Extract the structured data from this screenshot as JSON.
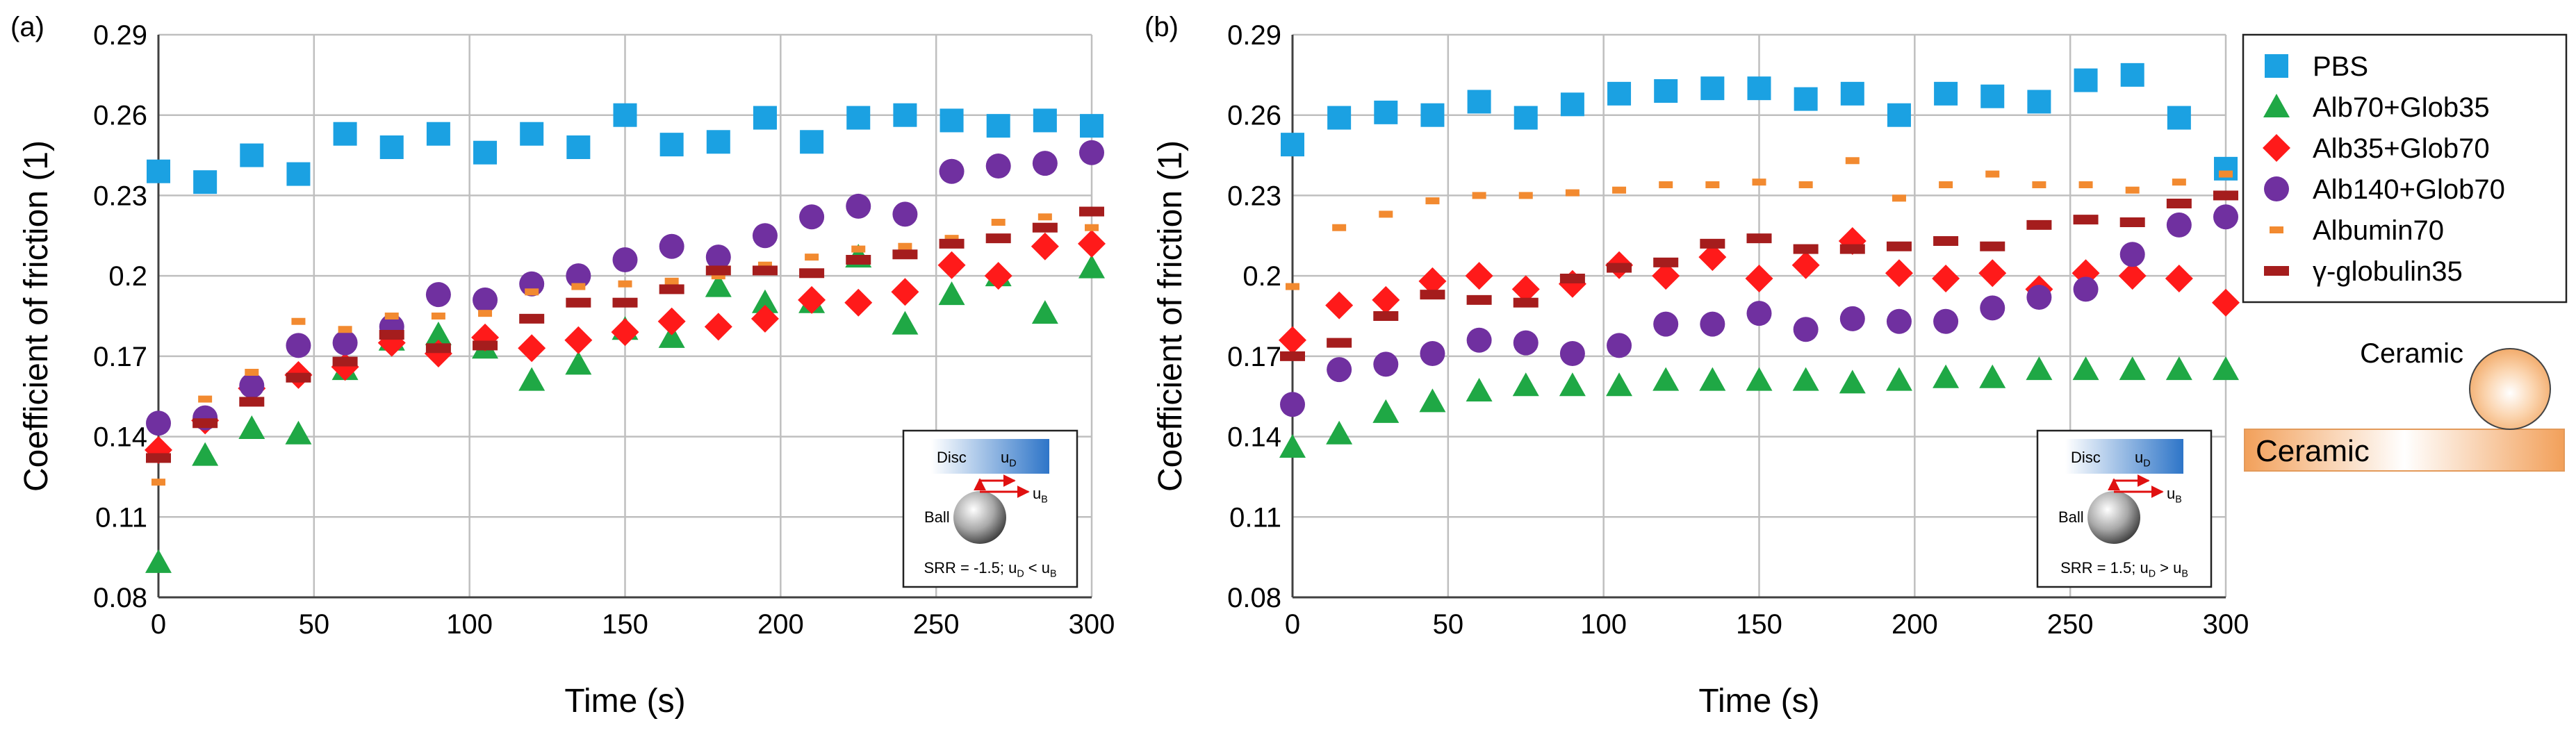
{
  "colors": {
    "PBS": "#1BA1E2",
    "Alb70+Glob35": "#1FA845",
    "Alb35+Glob70": "#FF1A1A",
    "Alb140+Glob70": "#7030A0",
    "Albumin70": "#F28A30",
    "globulin35": "#A51D1D",
    "grid": "#BFBFBF",
    "axis": "#404040"
  },
  "legend": {
    "placement": "right",
    "entries": [
      {
        "name": "PBS",
        "marker": "square"
      },
      {
        "name": "Alb70+Glob35",
        "marker": "triangle"
      },
      {
        "name": "Alb35+Glob70",
        "marker": "diamond"
      },
      {
        "name": "Alb140+Glob70",
        "marker": "circle"
      },
      {
        "name": "Albumin70",
        "marker": "short-dash"
      },
      {
        "name": "γ-globulin35",
        "marker": "long-dash"
      }
    ]
  },
  "contact_diagram": {
    "ball_label": "Ceramic",
    "disc_label": "Ceramic"
  },
  "chart_data": [
    {
      "type": "scatter",
      "panel_label": "(a)",
      "xlabel": "Time (s)",
      "ylabel": "Coefficient of friction (1)",
      "xlim": [
        0,
        300
      ],
      "ylim": [
        0.08,
        0.29
      ],
      "xticks": [
        0,
        50,
        100,
        150,
        200,
        250,
        300
      ],
      "yticks": [
        0.08,
        0.11,
        0.14,
        0.17,
        0.2,
        0.23,
        0.26,
        0.29
      ],
      "ytick_labels": [
        "0.08",
        "0.11",
        "0.14",
        "0.17",
        "0.2",
        "0.23",
        "0.26",
        "0.29"
      ],
      "grid": true,
      "inset": {
        "disc_label": "Disc",
        "ud": "u",
        "ud_sub": "D",
        "ub": "u",
        "ub_sub": "B",
        "ball_label": "Ball",
        "srr_text": "SRR = -1.5; u",
        "srr_sub1": "D",
        "srr_mid": " < u",
        "srr_sub2": "B"
      },
      "x": [
        0,
        15,
        30,
        45,
        60,
        75,
        90,
        105,
        120,
        135,
        150,
        165,
        180,
        195,
        210,
        225,
        240,
        255,
        270,
        285,
        300
      ],
      "series": [
        {
          "name": "PBS",
          "values": [
            0.239,
            0.235,
            0.245,
            0.238,
            0.253,
            0.248,
            0.253,
            0.246,
            0.253,
            0.248,
            0.26,
            0.249,
            0.25,
            0.259,
            0.25,
            0.259,
            0.26,
            0.258,
            0.256,
            0.258,
            0.256
          ]
        },
        {
          "name": "Alb70+Glob35",
          "values": [
            0.093,
            0.133,
            0.143,
            0.141,
            0.165,
            0.176,
            0.178,
            0.173,
            0.161,
            0.167,
            0.18,
            0.177,
            0.196,
            0.19,
            0.19,
            0.207,
            0.182,
            0.193,
            0.2,
            0.186,
            0.203
          ]
        },
        {
          "name": "Alb35+Glob70",
          "values": [
            0.135,
            0.146,
            0.158,
            0.163,
            0.166,
            0.175,
            0.171,
            0.177,
            0.173,
            0.176,
            0.179,
            0.183,
            0.181,
            0.184,
            0.191,
            0.19,
            0.194,
            0.204,
            0.2,
            0.211,
            0.212
          ]
        },
        {
          "name": "Alb140+Glob70",
          "values": [
            0.145,
            0.147,
            0.159,
            0.174,
            0.175,
            0.181,
            0.193,
            0.191,
            0.197,
            0.2,
            0.206,
            0.211,
            0.207,
            0.215,
            0.222,
            0.226,
            0.223,
            0.239,
            0.241,
            0.242,
            0.246
          ]
        },
        {
          "name": "Albumin70",
          "values": [
            0.123,
            0.154,
            0.164,
            0.183,
            0.18,
            0.185,
            0.185,
            0.186,
            0.194,
            0.196,
            0.197,
            0.198,
            0.2,
            0.204,
            0.207,
            0.21,
            0.211,
            0.214,
            0.22,
            0.222,
            0.218
          ]
        },
        {
          "name": "γ-globulin35",
          "values": [
            0.132,
            0.145,
            0.153,
            0.162,
            0.168,
            0.178,
            0.173,
            0.174,
            0.184,
            0.19,
            0.19,
            0.195,
            0.202,
            0.202,
            0.201,
            0.206,
            0.208,
            0.212,
            0.214,
            0.218,
            0.224
          ]
        }
      ]
    },
    {
      "type": "scatter",
      "panel_label": "(b)",
      "xlabel": "Time (s)",
      "ylabel": "Coefficient of friction (1)",
      "xlim": [
        0,
        300
      ],
      "ylim": [
        0.08,
        0.29
      ],
      "xticks": [
        0,
        50,
        100,
        150,
        200,
        250,
        300
      ],
      "yticks": [
        0.08,
        0.11,
        0.14,
        0.17,
        0.2,
        0.23,
        0.26,
        0.29
      ],
      "ytick_labels": [
        "0.08",
        "0.11",
        "0.14",
        "0.17",
        "0.2",
        "0.23",
        "0.26",
        "0.29"
      ],
      "grid": true,
      "inset": {
        "disc_label": "Disc",
        "ud": "u",
        "ud_sub": "D",
        "ub": "u",
        "ub_sub": "B",
        "ball_label": "Ball",
        "srr_text": "SRR = 1.5; u",
        "srr_sub1": "D",
        "srr_mid": " > u",
        "srr_sub2": "B"
      },
      "x": [
        0,
        15,
        30,
        45,
        60,
        75,
        90,
        105,
        120,
        135,
        150,
        165,
        180,
        195,
        210,
        225,
        240,
        255,
        270,
        285,
        300
      ],
      "series": [
        {
          "name": "PBS",
          "values": [
            0.249,
            0.259,
            0.261,
            0.26,
            0.265,
            0.259,
            0.264,
            0.268,
            0.269,
            0.27,
            0.27,
            0.266,
            0.268,
            0.26,
            0.268,
            0.267,
            0.265,
            0.273,
            0.275,
            0.259,
            0.24
          ]
        },
        {
          "name": "Alb70+Glob35",
          "values": [
            0.136,
            0.141,
            0.149,
            0.153,
            0.157,
            0.159,
            0.159,
            0.159,
            0.161,
            0.161,
            0.161,
            0.161,
            0.16,
            0.161,
            0.162,
            0.162,
            0.165,
            0.165,
            0.165,
            0.165,
            0.165
          ]
        },
        {
          "name": "Alb35+Glob70",
          "values": [
            0.176,
            0.189,
            0.191,
            0.198,
            0.2,
            0.195,
            0.197,
            0.204,
            0.2,
            0.207,
            0.199,
            0.204,
            0.213,
            0.201,
            0.199,
            0.201,
            0.195,
            0.201,
            0.2,
            0.199,
            0.19
          ]
        },
        {
          "name": "Alb140+Glob70",
          "values": [
            0.152,
            0.165,
            0.167,
            0.171,
            0.176,
            0.175,
            0.171,
            0.174,
            0.182,
            0.182,
            0.186,
            0.18,
            0.184,
            0.183,
            0.183,
            0.188,
            0.192,
            0.195,
            0.208,
            0.219,
            0.222
          ]
        },
        {
          "name": "Albumin70",
          "values": [
            0.196,
            0.218,
            0.223,
            0.228,
            0.23,
            0.23,
            0.231,
            0.232,
            0.234,
            0.234,
            0.235,
            0.234,
            0.243,
            0.229,
            0.234,
            0.238,
            0.234,
            0.234,
            0.232,
            0.235,
            0.238
          ]
        },
        {
          "name": "γ-globulin35",
          "values": [
            0.17,
            0.175,
            0.185,
            0.193,
            0.191,
            0.19,
            0.199,
            0.203,
            0.205,
            0.212,
            0.214,
            0.21,
            0.21,
            0.211,
            0.213,
            0.211,
            0.219,
            0.221,
            0.22,
            0.227,
            0.23
          ]
        }
      ]
    }
  ]
}
